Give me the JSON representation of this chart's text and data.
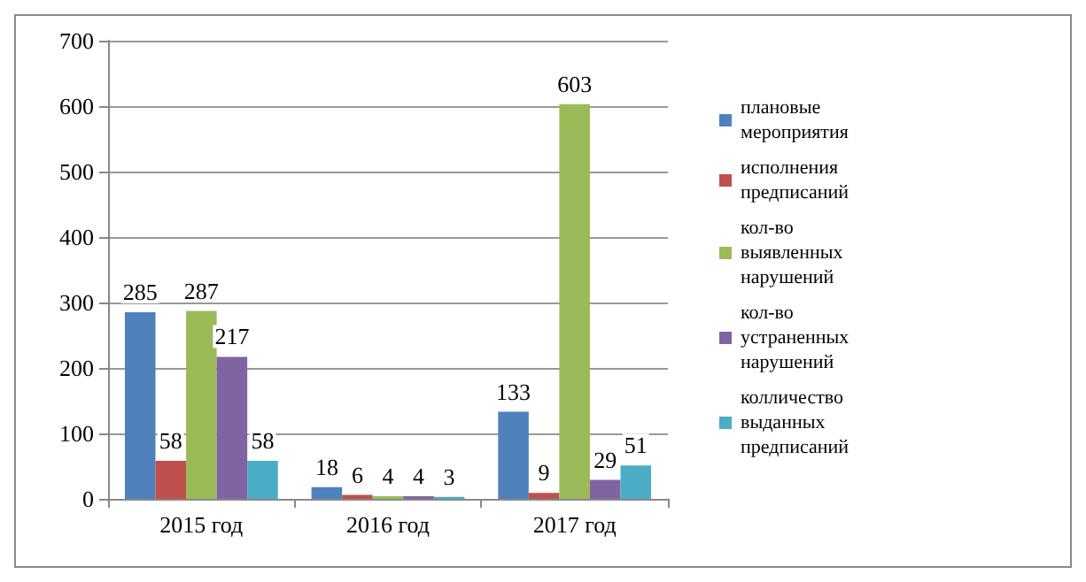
{
  "chart_data": {
    "type": "bar",
    "categories": [
      "2015 год",
      "2016 год",
      "2017 год"
    ],
    "series": [
      {
        "name": "плановые мероприятия",
        "color": "#4f81bd",
        "values": [
          285,
          18,
          133
        ]
      },
      {
        "name": "исполнения предписаний",
        "color": "#c0504d",
        "values": [
          58,
          6,
          9
        ]
      },
      {
        "name": "кол-во выявленных нарушений",
        "color": "#9bbb59",
        "values": [
          287,
          4,
          603
        ]
      },
      {
        "name": "кол-во устраненных нарушений",
        "color": "#8064a2",
        "values": [
          217,
          4,
          29
        ]
      },
      {
        "name": "колличество выданных предписаний",
        "color": "#4bacc6",
        "values": [
          58,
          3,
          51
        ]
      }
    ],
    "ylim": [
      0,
      700
    ],
    "yticks": [
      0,
      100,
      200,
      300,
      400,
      500,
      600,
      700
    ],
    "grid": "y",
    "legend": "right",
    "data_labels": true
  }
}
